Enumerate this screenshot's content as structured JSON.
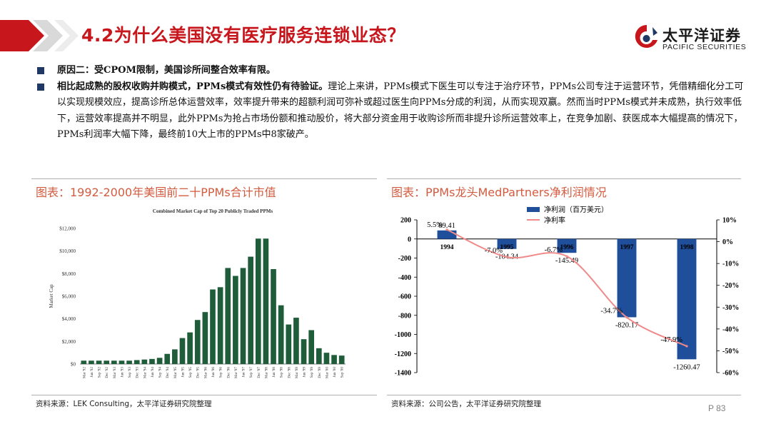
{
  "header": {
    "title": "4.2为什么美国没有医疗服务连锁业态？",
    "logo_cn": "太平洋证券",
    "logo_en": "PACIFIC SECURITIES"
  },
  "bullets": [
    {
      "bold": "原因二：受CPOM限制，美国诊所间整合效率有限。",
      "text": ""
    },
    {
      "bold": "相比起成熟的股权收购并购模式，PPMs模式有效性仍有待验证。",
      "text": "理论上来讲，PPMs模式下医生可以专注于治疗环节，PPMs公司专注于运营环节，凭借精细化分工可以实现规模效应，提高诊所总体运营效率，效率提升带来的超额利润可弥补或超过医生向PPMs分成的利润，从而实现双赢。然而当时PPMs模式并未成熟，执行效率低下，运营效率提高并不明显，此外PPMs为抢占市场份额和推动股价，将大部分资金用于收购诊所而非提升诊所运营效率上，在竞争加剧、获医成本大幅提高的情况下，PPMs利润率大幅下降，最终前10大上市的PPMs中8家破产。"
    }
  ],
  "left_panel": {
    "heading": "图表：1992-2000年美国前二十PPMs合计市值",
    "source": "资料来源：LEK Consulting，太平洋证券研究院整理"
  },
  "right_panel": {
    "heading": "图表：PPMs龙头MedPartners净利润情况",
    "source": "资料来源：公司公告，太平洋证券研究院整理"
  },
  "page_number": "P 83",
  "colors": {
    "title_red": "#c8161d",
    "heading_orange": "#d35b3f",
    "bar_green": "#1e5c3a",
    "bar_blue": "#1f4e9a",
    "line_pink": "#f08a8a",
    "bullet_navy": "#1f3864"
  },
  "chart_data": [
    {
      "type": "bar",
      "title": "Combined Market Cap of Top 20 Publicly Traded PPMs",
      "xlabel": "",
      "ylabel": "Market Cap",
      "ylim": [
        0,
        12000
      ],
      "yticks": [
        "$0",
        "$2,000",
        "$4,000",
        "$6,000",
        "$8,000",
        "$10,000",
        "$12,000"
      ],
      "categories": [
        "Mar '92",
        "Jun '92",
        "Sep '92",
        "Dec '92",
        "Mar '93",
        "Jun '93",
        "Sep '93",
        "Dec '93",
        "Mar '94",
        "Jun '94",
        "Sep '94",
        "Dec '94",
        "Mar '95",
        "Jun '95",
        "Sep '95",
        "Dec '95",
        "Mar '96",
        "Jun '96",
        "Sep '96",
        "Dec '96",
        "Mar '97",
        "Jun '97",
        "Sep '97",
        "Dec '97",
        "Mar '98",
        "Jun '98",
        "Sep '98",
        "Dec '98",
        "Mar '99",
        "Jun '99",
        "Sep '99",
        "Dec '99",
        "Mar '00",
        "Jun '00",
        "Sep '00"
      ],
      "values": [
        300,
        300,
        300,
        300,
        300,
        300,
        300,
        350,
        400,
        450,
        550,
        900,
        1300,
        2300,
        2800,
        3900,
        4600,
        6600,
        6800,
        8500,
        7800,
        8500,
        9500,
        11100,
        11100,
        8400,
        5200,
        3500,
        4100,
        2200,
        3000,
        1400,
        1000,
        800,
        750
      ],
      "grid": false,
      "legend": "none"
    },
    {
      "type": "bar",
      "title": "",
      "categories": [
        "1994",
        "1995",
        "1996",
        "1997",
        "1998"
      ],
      "series": [
        {
          "name": "净利润（百万美元）",
          "type": "bar",
          "axis": "left",
          "values": [
            89.41,
            -104.34,
            -145.49,
            -820.17,
            -1260.47
          ],
          "labels": [
            "89.41",
            "-104.34",
            "-145.49",
            "-820.17",
            "-1260.47"
          ]
        },
        {
          "name": "净利率",
          "type": "line",
          "axis": "right",
          "values": [
            5.5,
            -7.0,
            -6.7,
            -34.7,
            -47.9
          ],
          "labels": [
            "5.5%",
            "-7.0%",
            "-6.7%",
            "-34.7%",
            "-47.9%"
          ]
        }
      ],
      "ylim": [
        -1400,
        200
      ],
      "yticks": [
        "200",
        "0",
        "-200",
        "-400",
        "-600",
        "-800",
        "-1000",
        "-1200",
        "-1400"
      ],
      "y2lim": [
        -60,
        10
      ],
      "y2ticks": [
        "10%",
        "0%",
        "-10%",
        "-20%",
        "-30%",
        "-40%",
        "-50%",
        "-60%"
      ],
      "legend": "top-center",
      "grid": false
    }
  ]
}
